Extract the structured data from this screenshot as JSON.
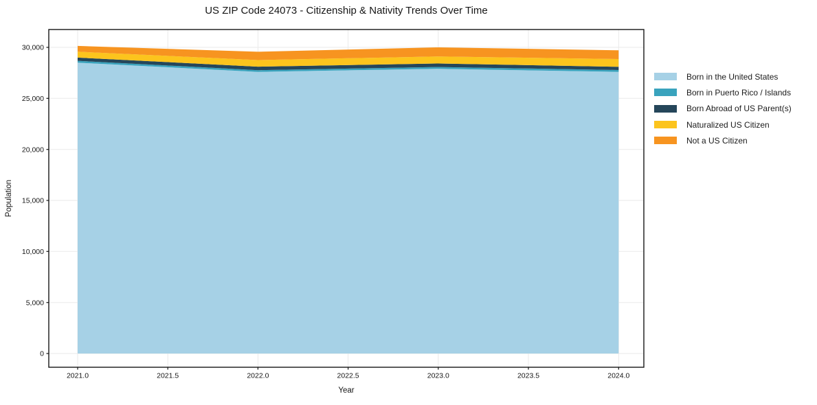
{
  "chart_data": {
    "type": "area",
    "stacked": true,
    "title": "US ZIP Code 24073 - Citizenship & Nativity Trends Over Time",
    "xlabel": "Year",
    "ylabel": "Population",
    "x": [
      2021,
      2022,
      2023,
      2024
    ],
    "series": [
      {
        "name": "Born in the United States",
        "color": "#A6D1E6",
        "values": [
          28500,
          27600,
          27900,
          27600
        ]
      },
      {
        "name": "Born in Puerto Rico / Islands",
        "color": "#39A3BD",
        "values": [
          180,
          170,
          180,
          180
        ]
      },
      {
        "name": "Born Abroad of US Parent(s)",
        "color": "#25465A",
        "values": [
          320,
          340,
          340,
          320
        ]
      },
      {
        "name": "Naturalized US Citizen",
        "color": "#FCC41D",
        "values": [
          580,
          650,
          690,
          760
        ]
      },
      {
        "name": "Not a US Citizen",
        "color": "#F79420",
        "values": [
          560,
          810,
          890,
          850
        ]
      }
    ],
    "xticks": [
      2021.0,
      2021.5,
      2022.0,
      2022.5,
      2023.0,
      2023.5,
      2024.0
    ],
    "xtick_labels": [
      "2021.0",
      "2021.5",
      "2022.0",
      "2022.5",
      "2023.0",
      "2023.5",
      "2024.0"
    ],
    "yticks": [
      0,
      5000,
      10000,
      15000,
      20000,
      25000,
      30000
    ],
    "ytick_labels": [
      "0",
      "5,000",
      "10,000",
      "15,000",
      "20,000",
      "25,000",
      "30,000"
    ],
    "xlim": [
      2020.84,
      2024.14
    ],
    "ylim": [
      -1345,
      31750
    ],
    "grid": true,
    "grid_color": "#eaeaea",
    "axis_color": "#151515",
    "legend_position": "right"
  }
}
